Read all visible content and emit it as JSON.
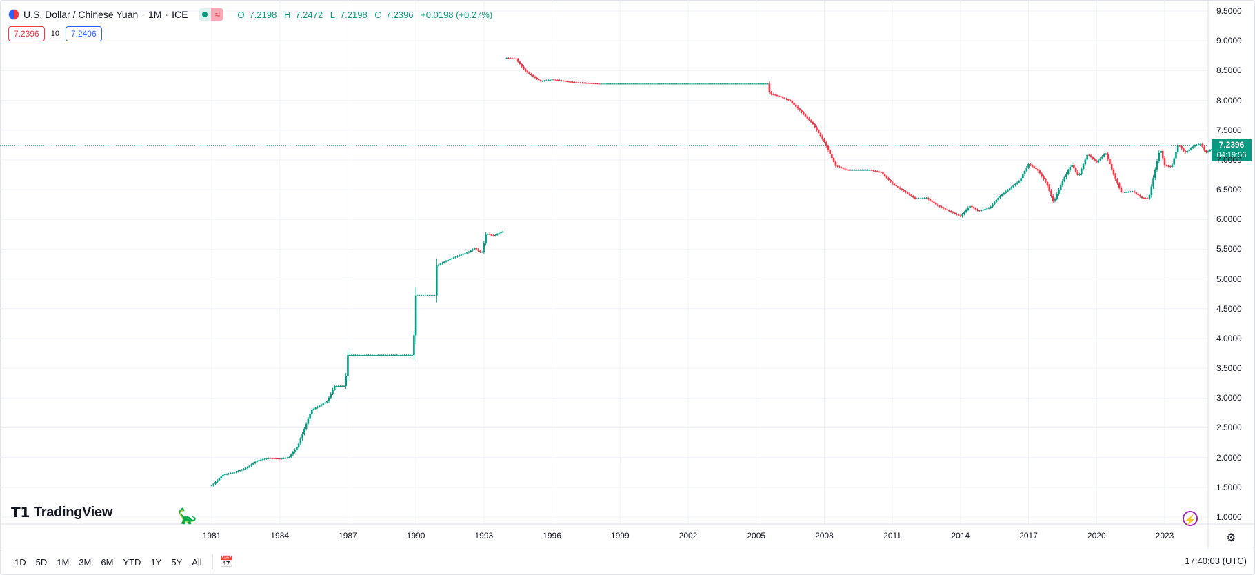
{
  "header": {
    "symbol_title": "U.S. Dollar / Chinese Yuan",
    "sep": "·",
    "interval": "1M",
    "exchange": "ICE",
    "ohlc": {
      "o_key": "O",
      "o_val": "7.2198",
      "h_key": "H",
      "h_val": "7.2472",
      "l_key": "L",
      "l_val": "7.2198",
      "c_key": "C",
      "c_val": "7.2396",
      "change": "+0.0198 (+0.27%)"
    },
    "market_status_icon": "market-open-dot-icon",
    "delayed_icon": "approx-wave-icon"
  },
  "quotes": {
    "sell": "7.2396",
    "spread": "10",
    "buy": "7.2406"
  },
  "price_label": {
    "price": "7.2396",
    "countdown": "04:19:56"
  },
  "branding": {
    "logo_text": "TradingView",
    "logo_icon": "tradingview-logo-icon"
  },
  "bottom_bar": {
    "ranges": [
      "1D",
      "5D",
      "1M",
      "3M",
      "6M",
      "YTD",
      "1Y",
      "5Y",
      "All"
    ],
    "clock": "17:40:03 (UTC)"
  },
  "colors": {
    "up": "#089981",
    "down": "#f23645",
    "grid": "#f0f3fa",
    "accent": "#2962ff"
  },
  "chart_data": {
    "type": "candlestick",
    "title": "U.S. Dollar / Chinese Yuan",
    "interval": "monthly",
    "xlabel": "",
    "ylabel": "",
    "x_ticks": [
      "1981",
      "1984",
      "1987",
      "1990",
      "1993",
      "1996",
      "1999",
      "2002",
      "2005",
      "2008",
      "2011",
      "2014",
      "2017",
      "2020",
      "2023"
    ],
    "y_ticks": [
      "1.0000",
      "1.5000",
      "2.0000",
      "2.5000",
      "3.0000",
      "3.5000",
      "4.0000",
      "4.5000",
      "5.0000",
      "5.5000",
      "6.0000",
      "6.5000",
      "7.0000",
      "7.5000",
      "8.0000",
      "8.5000",
      "9.0000",
      "9.5000"
    ],
    "ylim": [
      0.8,
      9.5
    ],
    "last_price": 7.2396,
    "grid": true,
    "series": [
      {
        "name": "USD/CNY",
        "points": [
          {
            "t": 1981.0,
            "v": 1.53
          },
          {
            "t": 1981.5,
            "v": 1.71
          },
          {
            "t": 1982.0,
            "v": 1.75
          },
          {
            "t": 1982.5,
            "v": 1.82
          },
          {
            "t": 1983.0,
            "v": 1.95
          },
          {
            "t": 1983.5,
            "v": 1.99
          },
          {
            "t": 1984.0,
            "v": 1.98
          },
          {
            "t": 1984.4,
            "v": 2.0
          },
          {
            "t": 1984.8,
            "v": 2.2
          },
          {
            "t": 1985.1,
            "v": 2.5
          },
          {
            "t": 1985.4,
            "v": 2.8
          },
          {
            "t": 1985.8,
            "v": 2.88
          },
          {
            "t": 1986.1,
            "v": 2.95
          },
          {
            "t": 1986.4,
            "v": 3.2
          },
          {
            "t": 1986.9,
            "v": 3.2
          },
          {
            "t": 1986.95,
            "v": 3.72
          },
          {
            "t": 1989.9,
            "v": 3.72
          },
          {
            "t": 1989.95,
            "v": 4.72
          },
          {
            "t": 1990.85,
            "v": 4.72
          },
          {
            "t": 1990.9,
            "v": 5.22
          },
          {
            "t": 1991.3,
            "v": 5.3
          },
          {
            "t": 1991.8,
            "v": 5.38
          },
          {
            "t": 1992.3,
            "v": 5.45
          },
          {
            "t": 1992.6,
            "v": 5.52
          },
          {
            "t": 1992.9,
            "v": 5.43
          },
          {
            "t": 1993.1,
            "v": 5.77
          },
          {
            "t": 1993.4,
            "v": 5.72
          },
          {
            "t": 1993.9,
            "v": 5.81
          }
        ]
      },
      {
        "name": "USD/CNY",
        "points": [
          {
            "t": 1994.0,
            "v": 8.71
          },
          {
            "t": 1994.4,
            "v": 8.7
          },
          {
            "t": 1994.8,
            "v": 8.5
          },
          {
            "t": 1995.2,
            "v": 8.39
          },
          {
            "t": 1995.5,
            "v": 8.32
          },
          {
            "t": 1996.0,
            "v": 8.35
          },
          {
            "t": 1997.0,
            "v": 8.3
          },
          {
            "t": 1998.0,
            "v": 8.28
          },
          {
            "t": 2002.0,
            "v": 8.28
          },
          {
            "t": 2005.5,
            "v": 8.28
          },
          {
            "t": 2005.6,
            "v": 8.11
          },
          {
            "t": 2006.0,
            "v": 8.07
          },
          {
            "t": 2006.5,
            "v": 7.99
          },
          {
            "t": 2007.0,
            "v": 7.8
          },
          {
            "t": 2007.5,
            "v": 7.6
          },
          {
            "t": 2008.0,
            "v": 7.3
          },
          {
            "t": 2008.5,
            "v": 6.9
          },
          {
            "t": 2009.0,
            "v": 6.83
          },
          {
            "t": 2010.0,
            "v": 6.83
          },
          {
            "t": 2010.5,
            "v": 6.79
          },
          {
            "t": 2011.0,
            "v": 6.6
          },
          {
            "t": 2012.0,
            "v": 6.35
          },
          {
            "t": 2012.5,
            "v": 6.36
          },
          {
            "t": 2013.0,
            "v": 6.23
          },
          {
            "t": 2014.0,
            "v": 6.05
          },
          {
            "t": 2014.4,
            "v": 6.23
          },
          {
            "t": 2014.8,
            "v": 6.14
          },
          {
            "t": 2015.3,
            "v": 6.2
          },
          {
            "t": 2015.7,
            "v": 6.38
          },
          {
            "t": 2016.1,
            "v": 6.5
          },
          {
            "t": 2016.6,
            "v": 6.65
          },
          {
            "t": 2017.0,
            "v": 6.93
          },
          {
            "t": 2017.4,
            "v": 6.83
          },
          {
            "t": 2017.8,
            "v": 6.6
          },
          {
            "t": 2018.1,
            "v": 6.29
          },
          {
            "t": 2018.5,
            "v": 6.65
          },
          {
            "t": 2018.9,
            "v": 6.93
          },
          {
            "t": 2019.2,
            "v": 6.72
          },
          {
            "t": 2019.6,
            "v": 7.1
          },
          {
            "t": 2020.0,
            "v": 6.96
          },
          {
            "t": 2020.4,
            "v": 7.12
          },
          {
            "t": 2020.8,
            "v": 6.7
          },
          {
            "t": 2021.1,
            "v": 6.45
          },
          {
            "t": 2021.6,
            "v": 6.47
          },
          {
            "t": 2022.0,
            "v": 6.36
          },
          {
            "t": 2022.3,
            "v": 6.35
          },
          {
            "t": 2022.5,
            "v": 6.7
          },
          {
            "t": 2022.8,
            "v": 7.2
          },
          {
            "t": 2023.0,
            "v": 6.91
          },
          {
            "t": 2023.3,
            "v": 6.88
          },
          {
            "t": 2023.6,
            "v": 7.26
          },
          {
            "t": 2023.9,
            "v": 7.12
          },
          {
            "t": 2024.3,
            "v": 7.24
          },
          {
            "t": 2024.6,
            "v": 7.27
          },
          {
            "t": 2024.8,
            "v": 7.12
          },
          {
            "t": 2025.2,
            "v": 7.21
          },
          {
            "t": 2025.5,
            "v": 7.2396
          }
        ]
      }
    ]
  }
}
